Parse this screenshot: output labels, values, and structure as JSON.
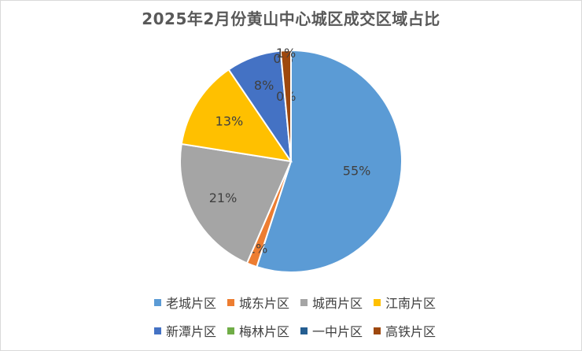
{
  "chart_data": {
    "type": "pie",
    "title": "2025年2月份黄山中心城区成交区域占比",
    "categories": [
      "老城片区",
      "城东片区",
      "城西片区",
      "江南片区",
      "新潭片区",
      "梅林片区",
      "一中片区",
      "高铁片区"
    ],
    "values": [
      55,
      1.5,
      21,
      13,
      8,
      0,
      0,
      1.5
    ],
    "data_labels": [
      "55%",
      "2%",
      "21%",
      "13%",
      "8%",
      "0%",
      "0%",
      "1%"
    ],
    "colors": [
      "#5B9BD5",
      "#ED7D31",
      "#A5A5A5",
      "#FFC000",
      "#4472C4",
      "#70AD47",
      "#255E91",
      "#9E480E"
    ],
    "legend_position": "bottom",
    "start_angle_deg": 0,
    "direction": "clockwise"
  }
}
